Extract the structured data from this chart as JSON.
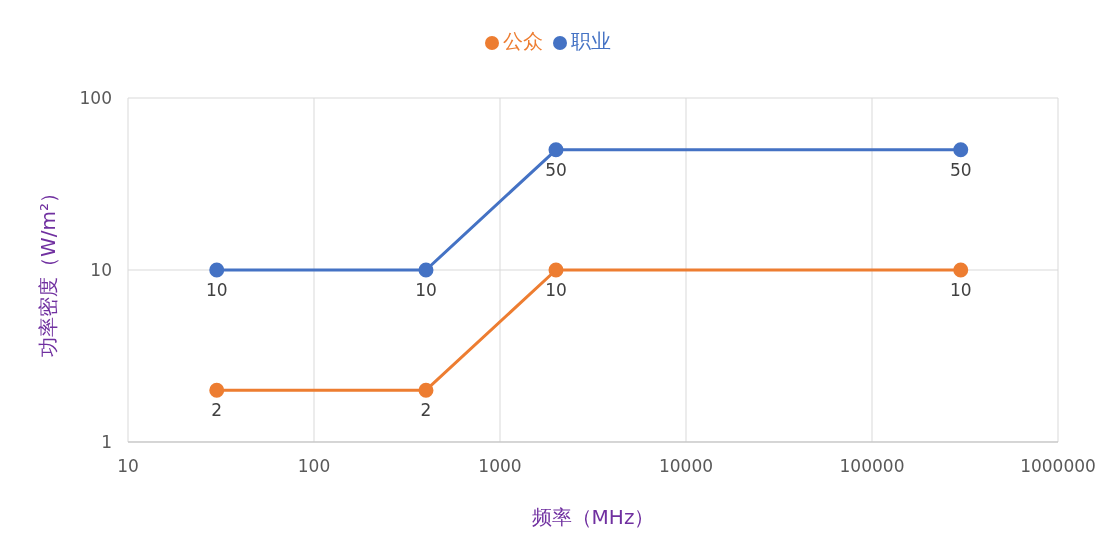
{
  "chart_data": {
    "type": "line",
    "xlabel": "频率（MHz）",
    "ylabel": "功率密度（W/m²）",
    "x": [
      30,
      400,
      2000,
      300000
    ],
    "series": [
      {
        "name": "职业",
        "color": "#4472c4",
        "values": [
          10,
          10,
          50,
          50
        ]
      },
      {
        "name": "公众",
        "color": "#ed7d31",
        "values": [
          2,
          2,
          10,
          10
        ]
      }
    ],
    "log": "xy",
    "xlim": [
      10,
      1000000
    ],
    "xticks": [
      10,
      100,
      1000,
      10000,
      100000,
      1000000
    ],
    "ylim": [
      1,
      100
    ],
    "yticks": [
      1,
      10,
      100
    ],
    "grid": true,
    "legend": "top",
    "marker": "circle",
    "line_style": "solid",
    "data_labels": true
  }
}
